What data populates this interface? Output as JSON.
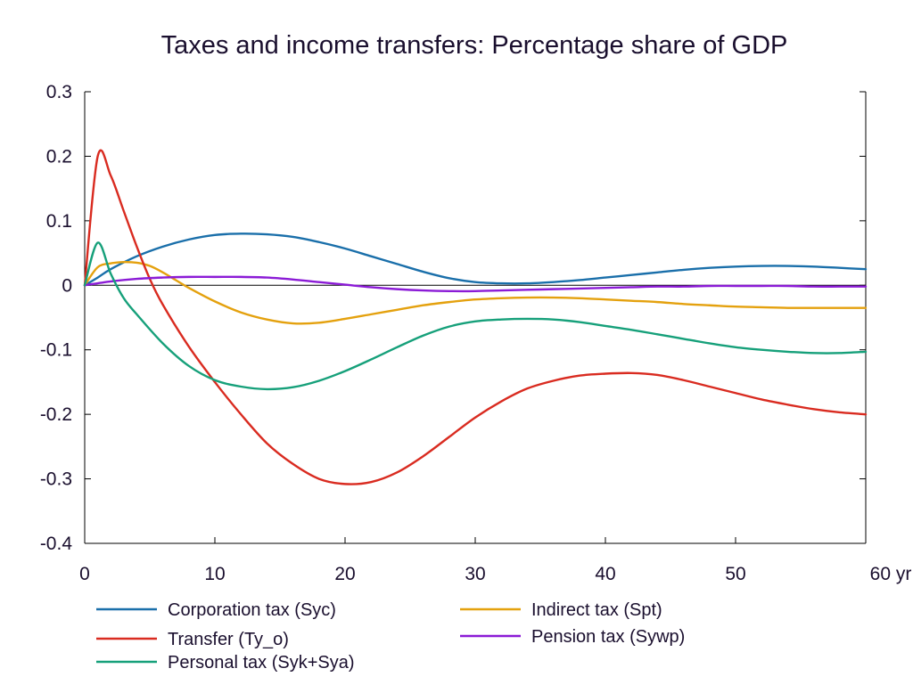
{
  "chart_data": {
    "type": "line",
    "title": "Taxes and income transfers: Percentage share of GDP",
    "xlabel": "",
    "ylabel": "",
    "xlim": [
      0,
      60
    ],
    "ylim": [
      -0.4,
      0.3
    ],
    "x_ticks": [
      0,
      10,
      20,
      30,
      40,
      50,
      60
    ],
    "x_tick_labels": [
      "0",
      "10",
      "20",
      "30",
      "40",
      "50",
      "60 yr"
    ],
    "y_ticks": [
      0.3,
      0.2,
      0.1,
      0,
      -0.1,
      -0.2,
      -0.3,
      -0.4
    ],
    "y_tick_labels": [
      "0.3",
      "0.2",
      "0.1",
      "0",
      "-0.1",
      "-0.2",
      "-0.3",
      "-0.4"
    ],
    "zero_line": true,
    "grid": false,
    "legend_position": "bottom",
    "series": [
      {
        "name": "Corporation tax (Syc)",
        "color": "#1a6faa",
        "x": [
          0,
          1,
          2,
          4,
          6,
          8,
          10,
          12,
          14,
          16,
          18,
          20,
          22,
          24,
          26,
          28,
          30,
          32,
          34,
          36,
          38,
          40,
          42,
          44,
          46,
          48,
          50,
          52,
          54,
          56,
          58,
          60
        ],
        "y": [
          0,
          0.012,
          0.025,
          0.045,
          0.06,
          0.071,
          0.078,
          0.08,
          0.079,
          0.075,
          0.067,
          0.057,
          0.045,
          0.033,
          0.021,
          0.011,
          0.005,
          0.003,
          0.003,
          0.005,
          0.008,
          0.012,
          0.016,
          0.02,
          0.024,
          0.027,
          0.029,
          0.03,
          0.03,
          0.029,
          0.027,
          0.025
        ]
      },
      {
        "name": "Indirect tax (Spt)",
        "color": "#e4a10e",
        "x": [
          0,
          1,
          2,
          3,
          4,
          5,
          6,
          7,
          8,
          10,
          12,
          14,
          16,
          18,
          20,
          22,
          24,
          26,
          28,
          30,
          32,
          34,
          36,
          38,
          40,
          42,
          44,
          46,
          48,
          50,
          52,
          54,
          56,
          58,
          60
        ],
        "y": [
          0,
          0.028,
          0.034,
          0.036,
          0.035,
          0.03,
          0.02,
          0.008,
          -0.004,
          -0.025,
          -0.042,
          -0.053,
          -0.059,
          -0.058,
          -0.052,
          -0.045,
          -0.038,
          -0.031,
          -0.026,
          -0.022,
          -0.02,
          -0.019,
          -0.019,
          -0.02,
          -0.022,
          -0.024,
          -0.026,
          -0.029,
          -0.031,
          -0.033,
          -0.034,
          -0.035,
          -0.035,
          -0.035,
          -0.035
        ]
      },
      {
        "name": "Transfer (Ty_o)",
        "color": "#d92b20",
        "x": [
          0,
          1,
          2,
          3,
          4,
          5,
          6,
          8,
          10,
          12,
          14,
          16,
          18,
          20,
          22,
          24,
          26,
          28,
          30,
          32,
          34,
          36,
          38,
          40,
          42,
          44,
          46,
          48,
          50,
          52,
          54,
          56,
          58,
          60
        ],
        "y": [
          0,
          0.2,
          0.17,
          0.115,
          0.06,
          0.01,
          -0.03,
          -0.095,
          -0.15,
          -0.2,
          -0.245,
          -0.277,
          -0.3,
          -0.308,
          -0.305,
          -0.29,
          -0.265,
          -0.235,
          -0.205,
          -0.18,
          -0.16,
          -0.148,
          -0.14,
          -0.137,
          -0.136,
          -0.139,
          -0.147,
          -0.157,
          -0.167,
          -0.177,
          -0.185,
          -0.192,
          -0.197,
          -0.2
        ]
      },
      {
        "name": "Pension tax (Sywp)",
        "color": "#8b1bd6",
        "x": [
          0,
          2,
          4,
          6,
          8,
          10,
          12,
          14,
          16,
          18,
          20,
          22,
          24,
          26,
          28,
          30,
          32,
          34,
          36,
          38,
          40,
          42,
          44,
          46,
          48,
          50,
          52,
          54,
          56,
          58,
          60
        ],
        "y": [
          0,
          0.006,
          0.01,
          0.012,
          0.013,
          0.013,
          0.013,
          0.012,
          0.009,
          0.005,
          0.001,
          -0.003,
          -0.006,
          -0.008,
          -0.009,
          -0.009,
          -0.008,
          -0.007,
          -0.006,
          -0.005,
          -0.004,
          -0.003,
          -0.002,
          -0.002,
          -0.001,
          -0.001,
          -0.001,
          -0.001,
          -0.002,
          -0.002,
          -0.002
        ]
      },
      {
        "name": "Personal tax (Syk+Sya)",
        "color": "#16a07a",
        "x": [
          0,
          1,
          2,
          3,
          4,
          6,
          8,
          10,
          12,
          14,
          16,
          18,
          20,
          22,
          24,
          26,
          28,
          30,
          32,
          34,
          36,
          38,
          40,
          42,
          44,
          46,
          48,
          50,
          52,
          54,
          56,
          58,
          60
        ],
        "y": [
          0,
          0.066,
          0.018,
          -0.02,
          -0.045,
          -0.09,
          -0.125,
          -0.147,
          -0.157,
          -0.161,
          -0.158,
          -0.148,
          -0.133,
          -0.115,
          -0.096,
          -0.078,
          -0.064,
          -0.056,
          -0.053,
          -0.052,
          -0.053,
          -0.057,
          -0.063,
          -0.069,
          -0.076,
          -0.083,
          -0.09,
          -0.096,
          -0.1,
          -0.103,
          -0.105,
          -0.105,
          -0.103
        ]
      }
    ],
    "legend": [
      {
        "name": "Corporation tax (Syc)",
        "color": "#1a6faa"
      },
      {
        "name": "Indirect tax (Spt)",
        "color": "#e4a10e"
      },
      {
        "name": "Transfer (Ty_o)",
        "color": "#d92b20"
      },
      {
        "name": "Pension tax (Sywp)",
        "color": "#8b1bd6"
      },
      {
        "name": "Personal tax (Syk+Sya)",
        "color": "#16a07a"
      }
    ]
  }
}
